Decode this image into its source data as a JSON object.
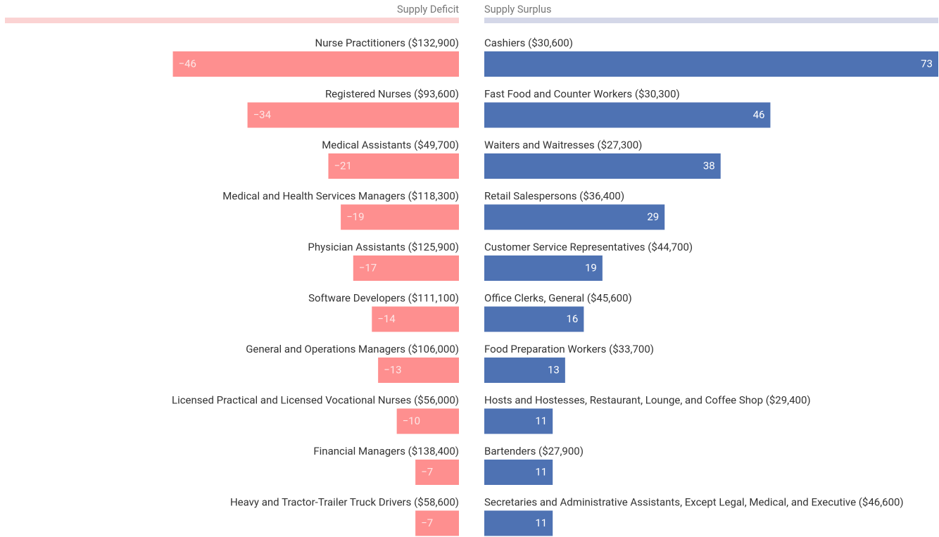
{
  "chart_data": [
    {
      "type": "bar",
      "orientation": "horizontal",
      "title": "Supply Deficit",
      "color": "#fe8f8f",
      "header_color": "#fbd3d3",
      "categories": [
        "Nurse Practitioners ($132,900)",
        "Registered Nurses ($93,600)",
        "Medical Assistants ($49,700)",
        "Medical and Health Services Managers ($118,300)",
        "Physician Assistants ($125,900)",
        "Software Developers ($111,100)",
        "General and Operations Managers ($106,000)",
        "Licensed Practical and Licensed Vocational Nurses ($56,000)",
        "Financial Managers ($138,400)",
        "Heavy and Tractor-Trailer Truck Drivers ($58,600)"
      ],
      "values": [
        -46,
        -34,
        -21,
        -19,
        -17,
        -14,
        -13,
        -10,
        -7,
        -7
      ],
      "value_labels": [
        "−46",
        "−34",
        "−21",
        "−19",
        "−17",
        "−14",
        "−13",
        "−10",
        "−7",
        "−7"
      ],
      "xlim": [
        -73,
        0
      ]
    },
    {
      "type": "bar",
      "orientation": "horizontal",
      "title": "Supply Surplus",
      "color": "#4e72b3",
      "header_color": "#d4d7e8",
      "categories": [
        "Cashiers ($30,600)",
        "Fast Food and Counter Workers ($30,300)",
        "Waiters and Waitresses ($27,300)",
        "Retail Salespersons ($36,400)",
        "Customer Service Representatives ($44,700)",
        "Office Clerks, General ($45,600)",
        "Food Preparation Workers ($33,700)",
        "Hosts and Hostesses, Restaurant, Lounge, and Coffee Shop ($29,400)",
        "Bartenders ($27,900)",
        "Secretaries and Administrative Assistants, Except Legal, Medical, and Executive ($46,600)"
      ],
      "values": [
        73,
        46,
        38,
        29,
        19,
        16,
        13,
        11,
        11,
        11
      ],
      "xlim": [
        0,
        73
      ]
    }
  ]
}
